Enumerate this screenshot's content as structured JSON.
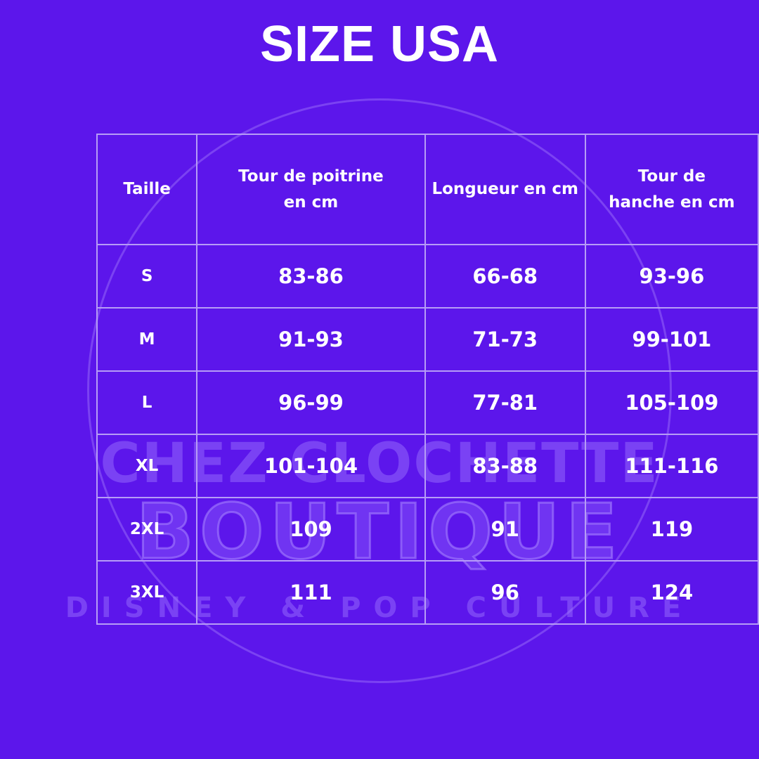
{
  "title": "SIZE USA",
  "watermark": {
    "line1": "CHEZ CLOCHETTE",
    "line2": "BOUTIQUE",
    "line3": "DISNEY & POP CULTURE"
  },
  "table": {
    "headers": [
      "Taille",
      "Tour de poitrine en cm",
      "Longueur en cm",
      "Tour de hanche en cm"
    ],
    "rows": [
      [
        "S",
        "83-86",
        "66-68",
        "93-96"
      ],
      [
        "M",
        "91-93",
        "71-73",
        "99-101"
      ],
      [
        "L",
        "96-99",
        "77-81",
        "105-109"
      ],
      [
        "XL",
        "101-104",
        "83-88",
        "111-116"
      ],
      [
        "2XL",
        "109",
        "91",
        "119"
      ],
      [
        "3XL",
        "111",
        "96",
        "124"
      ]
    ]
  },
  "colors": {
    "background": "#5c16eb",
    "border": "#b69cf6",
    "text": "#ffffff"
  }
}
